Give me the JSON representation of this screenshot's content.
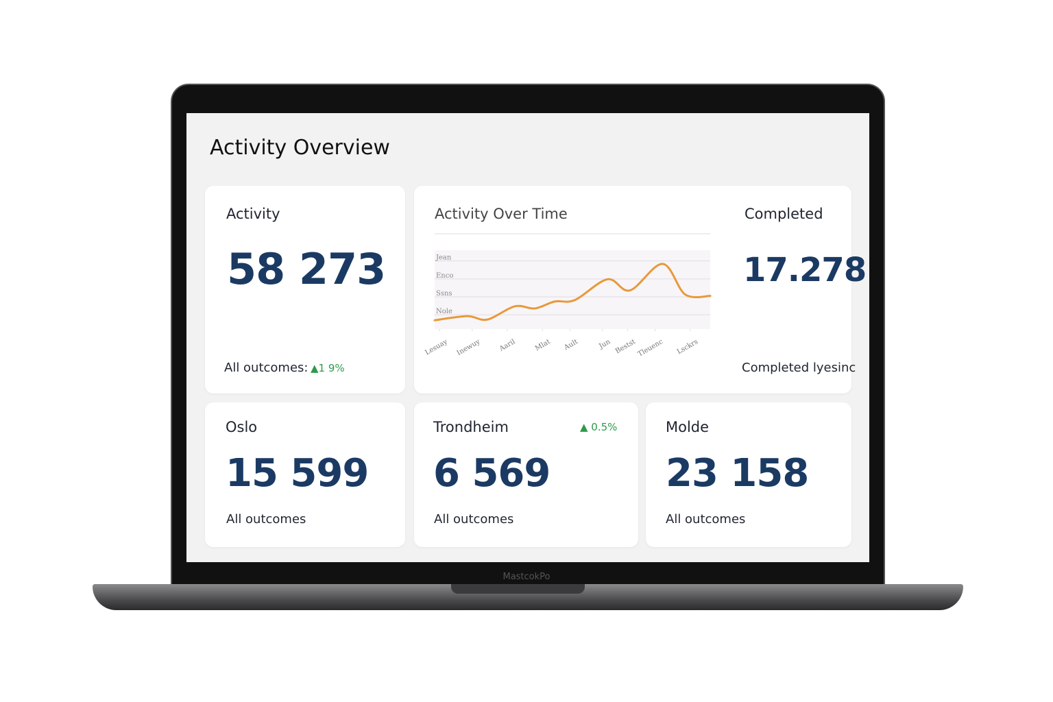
{
  "header": {
    "title": "Activity Overview"
  },
  "cards": [
    {
      "label": "Activity",
      "value": "58 273",
      "footer": "All outcomes:",
      "change": "▲1 9%"
    },
    {
      "label": "Completed",
      "value": "17.278",
      "footer": "Completed lyesinc"
    },
    {
      "label": "Oslo",
      "value": "15 599",
      "footer": "All outcomes"
    },
    {
      "label": "Trondheim",
      "value": "6 569",
      "footer": "All outcomes",
      "change": "▲ 0.5%"
    },
    {
      "label": "Molde",
      "value": "23 158",
      "footer": "All outcomes"
    }
  ],
  "chart_data": {
    "type": "line",
    "title": "Activity Over Time",
    "x": [
      0,
      1.3,
      2.1,
      3.2,
      4,
      4.8,
      5.6,
      6.9,
      7.8,
      9.1,
      10,
      11
    ],
    "values": [
      0.69,
      0.92,
      0.73,
      1.47,
      1.35,
      1.74,
      1.82,
      2.98,
      2.36,
      3.84,
      2.13,
      2.05
    ],
    "color": "#e8993a",
    "xlim": [
      0,
      11
    ],
    "xticks": [
      {
        "value": 0.2,
        "label": "Lesuay"
      },
      {
        "value": 1.5,
        "label": "Inewuy"
      },
      {
        "value": 2.9,
        "label": "Aaril"
      },
      {
        "value": 4.3,
        "label": "Mlat"
      },
      {
        "value": 5.4,
        "label": "Ault"
      },
      {
        "value": 6.7,
        "label": "Jun"
      },
      {
        "value": 7.7,
        "label": "Bestst"
      },
      {
        "value": 8.8,
        "label": "Tleuenc"
      },
      {
        "value": 10.2,
        "label": "Lsckrs"
      }
    ],
    "ylim": [
      0.2,
      4.6
    ],
    "yticks": [
      {
        "value": 4,
        "label": "Jean"
      },
      {
        "value": 3,
        "label": "Enco"
      },
      {
        "value": 2,
        "label": "Ssns"
      },
      {
        "value": 1,
        "label": "Nole"
      }
    ],
    "grid": true
  },
  "device": {
    "label": "MastcokPo"
  }
}
